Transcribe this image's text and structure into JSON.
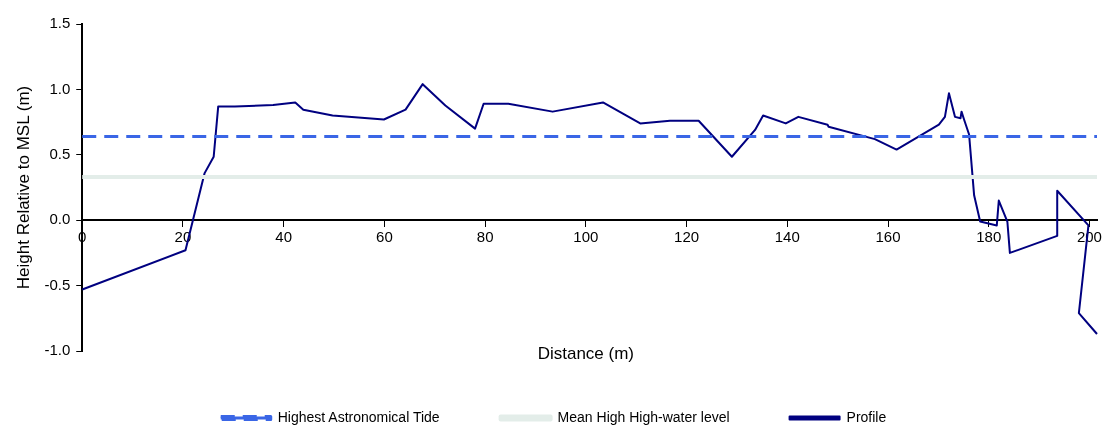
{
  "chart_data": {
    "type": "line",
    "xlabel": "Distance (m)",
    "ylabel": "Height Relative to MSL (m)",
    "xlim": [
      0,
      201.5
    ],
    "xticks": [
      0,
      20,
      40,
      60,
      80,
      100,
      120,
      140,
      160,
      180,
      200
    ],
    "ylim": [
      -1.0,
      1.5
    ],
    "yticks": [
      {
        "value": 1.5,
        "label": "1.5"
      },
      {
        "value": 1.0,
        "label": "1.0"
      },
      {
        "value": 0.5,
        "label": "0.5"
      },
      {
        "value": 0,
        "label": "0.0"
      },
      {
        "value": -0.5,
        "label": "-0.5"
      },
      {
        "value": -1.0,
        "label": "-1.0"
      }
    ],
    "grid": false,
    "legend": "bottom",
    "marker": "none",
    "series": [
      {
        "name": "Highest Astronomical Tide",
        "color": "#3a66e6",
        "line_style": "dashed",
        "x": [
          0,
          201.5
        ],
        "values": [
          0.64,
          0.64
        ]
      },
      {
        "name": "Mean High High-water level",
        "color": "#e3ede9",
        "line_style": "solid",
        "x": [
          0,
          201.5
        ],
        "values": [
          0.33,
          0.33
        ]
      },
      {
        "name": "Profile",
        "color": "#000080",
        "line_style": "solid",
        "x": [
          0,
          20.5,
          24.3,
          26.1,
          27.0,
          30.3,
          37.9,
          42.3,
          43.9,
          49.7,
          59.9,
          64.2,
          67.6,
          72.1,
          78.0,
          79.7,
          84.6,
          93.4,
          103.4,
          110.8,
          116.7,
          122.4,
          129.0,
          133.6,
          135.2,
          139.7,
          142.2,
          148.0,
          148.2,
          157.4,
          161.7,
          170.1,
          171.3,
          172.1,
          173.3,
          174.4,
          174.6,
          175.1,
          176.1,
          177.1,
          178.3,
          181.6,
          182.0,
          183.7,
          184.2,
          193.6,
          193.6,
          199.8,
          197.9,
          201.5
        ],
        "values": [
          -0.53,
          -0.23,
          0.36,
          0.485,
          0.87,
          0.87,
          0.88,
          0.9,
          0.845,
          0.8,
          0.77,
          0.845,
          1.04,
          0.877,
          0.7,
          0.89,
          0.89,
          0.83,
          0.9,
          0.74,
          0.76,
          0.76,
          0.485,
          0.69,
          0.8,
          0.74,
          0.79,
          0.73,
          0.715,
          0.62,
          0.54,
          0.73,
          0.79,
          0.97,
          0.79,
          0.78,
          0.83,
          0.77,
          0.655,
          0.19,
          -0.01,
          -0.04,
          0.15,
          -0.01,
          -0.25,
          -0.12,
          0.225,
          -0.04,
          -0.71,
          -0.87
        ]
      }
    ]
  }
}
